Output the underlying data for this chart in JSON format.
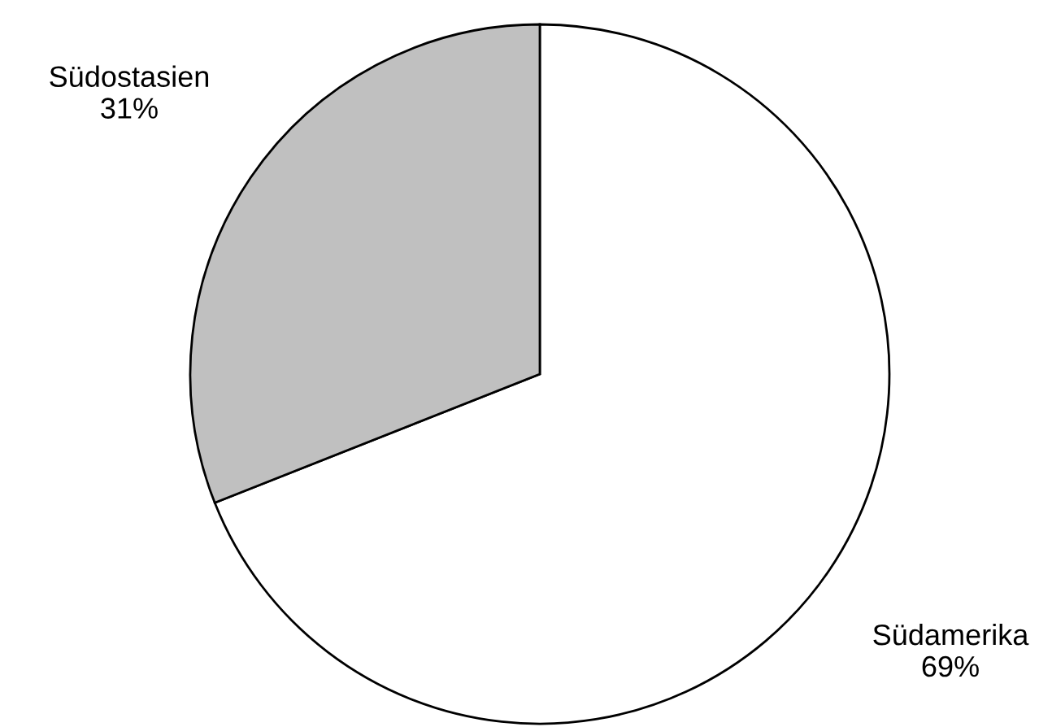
{
  "chart_data": {
    "type": "pie",
    "categories": [
      "Südamerika",
      "Südostasien"
    ],
    "values": [
      69,
      31
    ],
    "colors": [
      "#ffffff",
      "#c0c0c0"
    ],
    "value_labels": [
      "69%",
      "31%"
    ]
  }
}
